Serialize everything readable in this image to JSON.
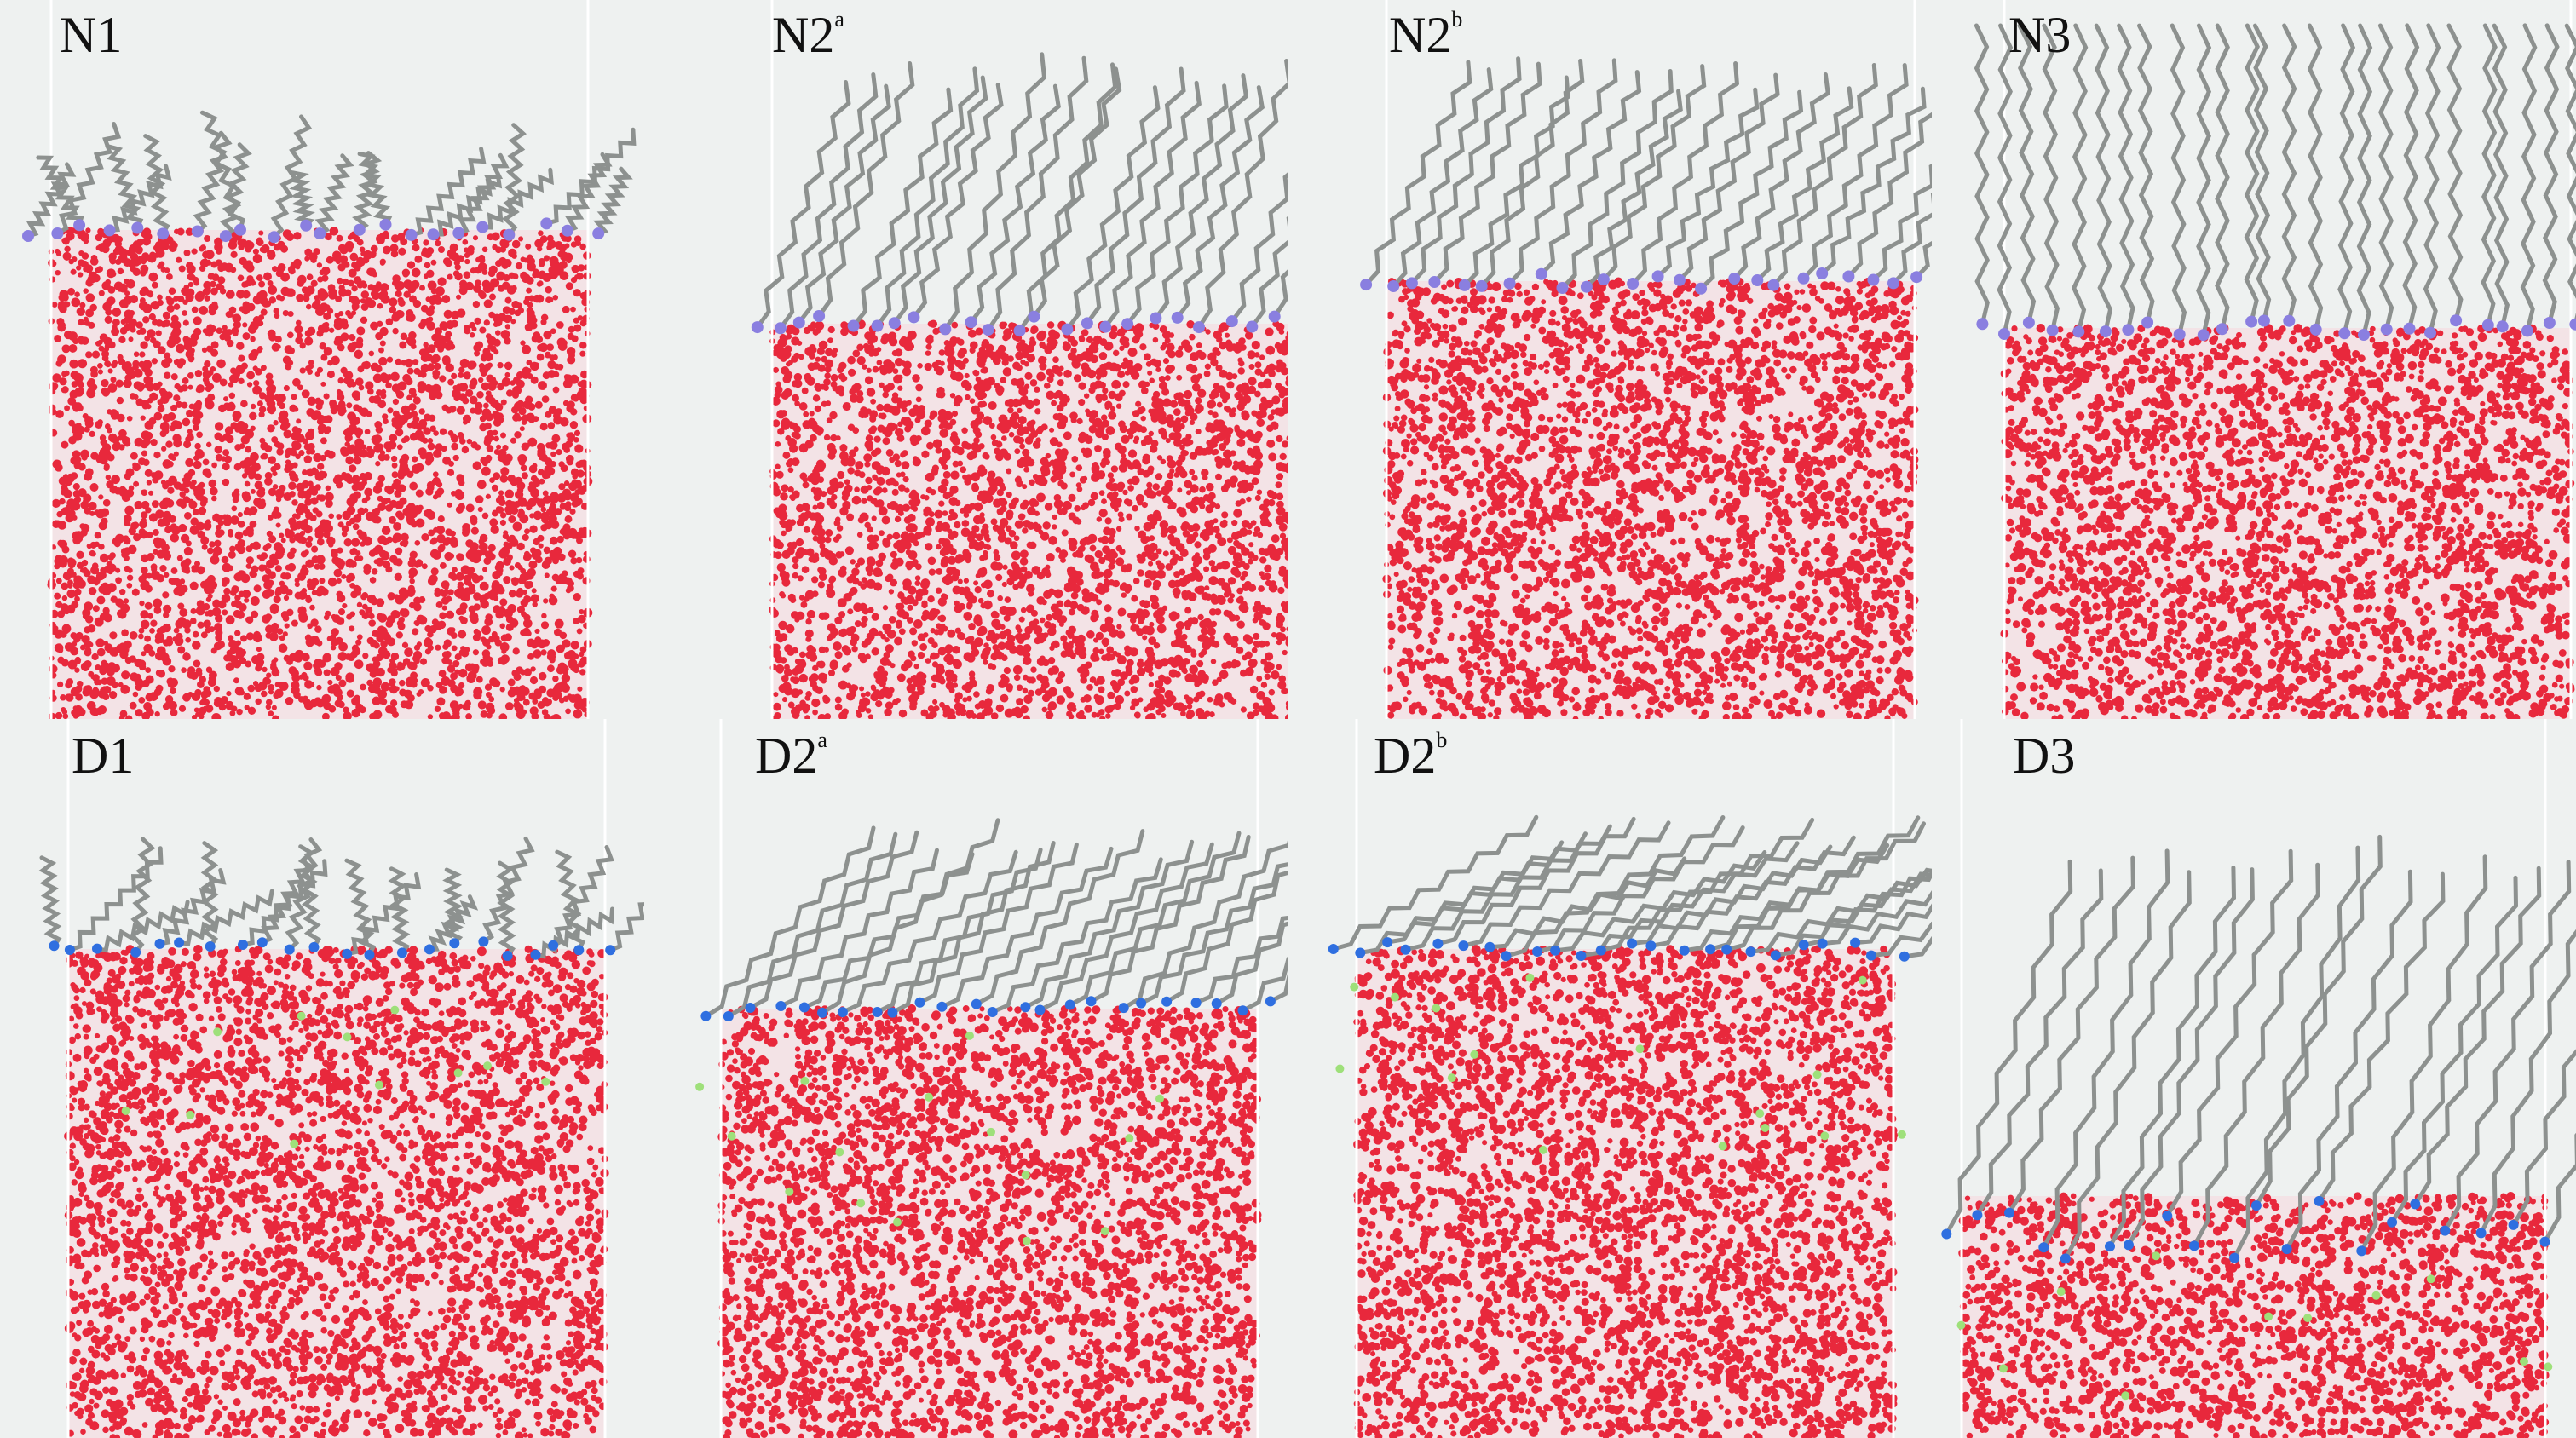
{
  "figure": {
    "panels": [
      {
        "id": "N1",
        "label": "N1",
        "superscript": "",
        "system": "N",
        "monolayer": "flat"
      },
      {
        "id": "N2a",
        "label": "N2",
        "superscript": "a",
        "system": "N",
        "monolayer": "tilted-dense"
      },
      {
        "id": "N2b",
        "label": "N2",
        "superscript": "b",
        "system": "N",
        "monolayer": "tilted-short"
      },
      {
        "id": "N3",
        "label": "N3",
        "superscript": "",
        "system": "N",
        "monolayer": "upright-dense"
      },
      {
        "id": "D1",
        "label": "D1",
        "superscript": "",
        "system": "D",
        "monolayer": "flat"
      },
      {
        "id": "D2a",
        "label": "D2",
        "superscript": "a",
        "system": "D",
        "monolayer": "tilted"
      },
      {
        "id": "D2b",
        "label": "D2",
        "superscript": "b",
        "system": "D",
        "monolayer": "tilted-short"
      },
      {
        "id": "D3",
        "label": "D3",
        "superscript": "",
        "system": "D",
        "monolayer": "penetrating"
      }
    ],
    "colors": {
      "background": "#eef1f0",
      "water": "#e8283c",
      "alkyl_chain": "#8d918f",
      "headgroup_N": "#8a7fe0",
      "headgroup_D": "#2f6fe0",
      "counterion": "#9ee07a",
      "box_edge": "#ffffff"
    }
  }
}
